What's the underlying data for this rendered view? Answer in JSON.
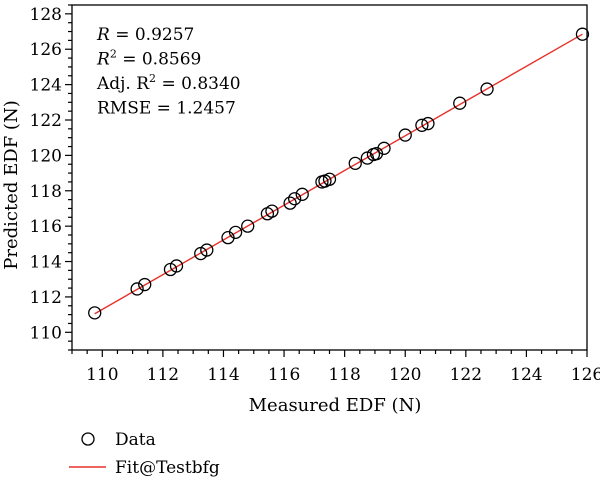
{
  "chart_data": {
    "type": "scatter",
    "xlabel": "Measured EDF (N)",
    "ylabel": "Predicted EDF (N)",
    "xlim": [
      109,
      126
    ],
    "ylim": [
      109,
      128.5
    ],
    "xticks": [
      110,
      112,
      114,
      116,
      118,
      120,
      122,
      124,
      126
    ],
    "yticks": [
      110,
      112,
      114,
      116,
      118,
      120,
      122,
      124,
      126,
      128
    ],
    "grid": false,
    "legend_placement": "bottom-left, below plot",
    "series": [
      {
        "name": "Data",
        "kind": "scatter",
        "marker": "open-circle",
        "color": "#000000",
        "x": [
          109.75,
          111.15,
          111.4,
          112.25,
          112.45,
          113.25,
          113.45,
          114.15,
          114.4,
          114.8,
          115.45,
          115.6,
          116.2,
          116.35,
          116.6,
          117.25,
          117.35,
          117.5,
          118.35,
          118.75,
          118.95,
          119.05,
          119.3,
          120.0,
          120.55,
          120.75,
          121.8,
          122.7,
          125.85
        ],
        "y": [
          111.1,
          112.45,
          112.7,
          113.55,
          113.75,
          114.45,
          114.65,
          115.35,
          115.65,
          116.0,
          116.7,
          116.85,
          117.3,
          117.55,
          117.8,
          118.5,
          118.55,
          118.65,
          119.55,
          119.85,
          120.05,
          120.1,
          120.4,
          121.15,
          121.7,
          121.8,
          122.95,
          123.75,
          126.85
        ]
      },
      {
        "name": "Fit@Testbfg",
        "kind": "line",
        "color": "#e8302a",
        "x": [
          109.75,
          125.85
        ],
        "y": [
          111.05,
          126.85
        ]
      }
    ],
    "annotations": [
      {
        "label": "R",
        "italic_label": true,
        "value": "0.9257",
        "text": "R = 0.9257"
      },
      {
        "label": "R",
        "superscript": "2",
        "italic_label": true,
        "value": "0.8569",
        "text": "R2 = 0.8569"
      },
      {
        "label": "Adj. R",
        "superscript": "2",
        "italic_label": false,
        "value": "0.8340",
        "text": "Adj. R2 = 0.8340"
      },
      {
        "label": "RMSE",
        "italic_label": false,
        "value": "1.2457",
        "text": "RMSE = 1.2457"
      }
    ]
  }
}
